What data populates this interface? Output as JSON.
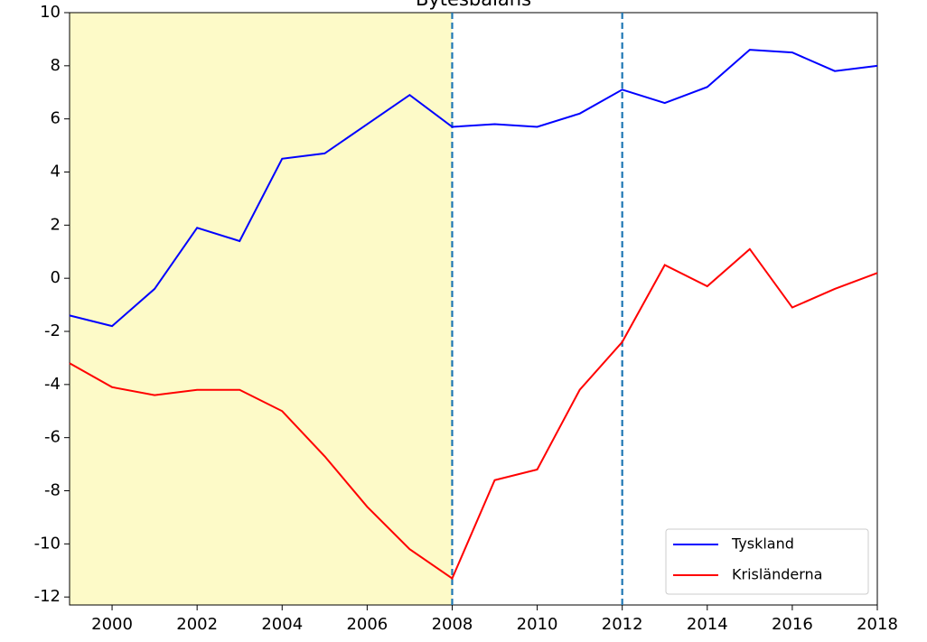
{
  "chart_data": {
    "type": "line",
    "title": "Bytesbalans",
    "x": [
      1999,
      2000,
      2001,
      2002,
      2003,
      2004,
      2005,
      2006,
      2007,
      2008,
      2009,
      2010,
      2011,
      2012,
      2013,
      2014,
      2015,
      2016,
      2017,
      2018
    ],
    "series": [
      {
        "name": "Tyskland",
        "color": "#0000ff",
        "values": [
          -1.4,
          -1.8,
          -0.4,
          1.9,
          1.4,
          4.5,
          4.7,
          5.8,
          6.9,
          5.7,
          5.8,
          5.7,
          6.2,
          7.1,
          6.6,
          7.2,
          8.6,
          8.5,
          7.8,
          8.0
        ]
      },
      {
        "name": "Krisländerna",
        "color": "#ff0000",
        "values": [
          -3.2,
          -4.1,
          -4.4,
          -4.2,
          -4.2,
          -5.0,
          -6.7,
          -8.6,
          -10.2,
          -11.3,
          -7.6,
          -7.2,
          -4.2,
          -2.4,
          0.5,
          -0.3,
          1.1,
          -1.1,
          -0.4,
          0.2
        ]
      }
    ],
    "xlim": [
      1999,
      2018
    ],
    "xticks": [
      2000,
      2002,
      2004,
      2006,
      2008,
      2010,
      2012,
      2014,
      2016,
      2018
    ],
    "ylim": [
      -12.3,
      10
    ],
    "yticks": [
      10,
      8,
      6,
      4,
      2,
      0,
      -2,
      -4,
      -6,
      -8,
      -10,
      -12
    ],
    "shaded_span": [
      1999,
      2008
    ],
    "shaded_color": "#fdfac8",
    "vlines": [
      2008,
      2012
    ],
    "vline_color": "#1f77b4",
    "legend": "lower right"
  }
}
